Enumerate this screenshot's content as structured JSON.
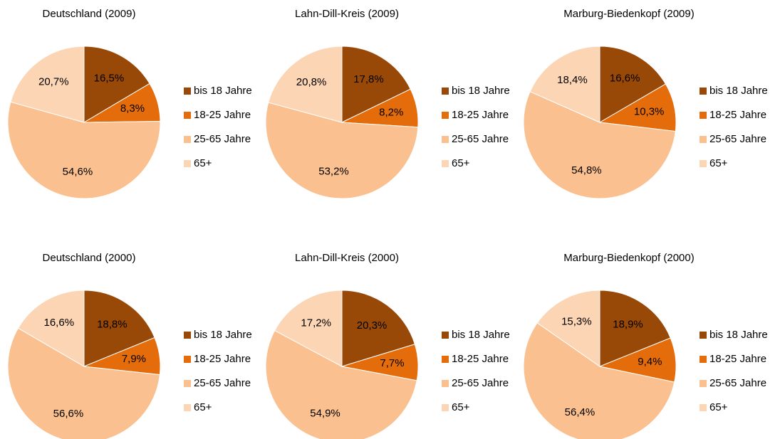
{
  "chart_data": [
    {
      "type": "pie",
      "title": "Deutschland (2009)",
      "categories": [
        "bis 18 Jahre",
        "18-25 Jahre",
        "25-65 Jahre",
        "65+"
      ],
      "values": [
        16.5,
        8.3,
        54.6,
        20.7
      ],
      "value_labels": [
        "16,5%",
        "8,3%",
        "54,6%",
        "20,7%"
      ],
      "colors": [
        "#984807",
        "#e46c0a",
        "#fac08f",
        "#fcd5b5"
      ]
    },
    {
      "type": "pie",
      "title": "Lahn-Dill-Kreis (2009)",
      "categories": [
        "bis 18 Jahre",
        "18-25 Jahre",
        "25-65 Jahre",
        "65+"
      ],
      "values": [
        17.8,
        8.2,
        53.2,
        20.8
      ],
      "value_labels": [
        "17,8%",
        "8,2%",
        "53,2%",
        "20,8%"
      ],
      "colors": [
        "#984807",
        "#e46c0a",
        "#fac08f",
        "#fcd5b5"
      ]
    },
    {
      "type": "pie",
      "title": "Marburg-Biedenkopf  (2009)",
      "categories": [
        "bis 18 Jahre",
        "18-25 Jahre",
        "25-65 Jahre",
        "65+"
      ],
      "values": [
        16.6,
        10.3,
        54.8,
        18.4
      ],
      "value_labels": [
        "16,6%",
        "10,3%",
        "54,8%",
        "18,4%"
      ],
      "colors": [
        "#984807",
        "#e46c0a",
        "#fac08f",
        "#fcd5b5"
      ]
    },
    {
      "type": "pie",
      "title": "Deutschland (2000)",
      "categories": [
        "bis 18 Jahre",
        "18-25 Jahre",
        "25-65 Jahre",
        "65+"
      ],
      "values": [
        18.8,
        7.9,
        56.6,
        16.6
      ],
      "value_labels": [
        "18,8%",
        "7,9%",
        "56,6%",
        "16,6%"
      ],
      "colors": [
        "#984807",
        "#e46c0a",
        "#fac08f",
        "#fcd5b5"
      ]
    },
    {
      "type": "pie",
      "title": "Lahn-Dill-Kreis (2000)",
      "categories": [
        "bis 18 Jahre",
        "18-25 Jahre",
        "25-65 Jahre",
        "65+"
      ],
      "values": [
        20.3,
        7.7,
        54.9,
        17.2
      ],
      "value_labels": [
        "20,3%",
        "7,7%",
        "54,9%",
        "17,2%"
      ],
      "colors": [
        "#984807",
        "#e46c0a",
        "#fac08f",
        "#fcd5b5"
      ]
    },
    {
      "type": "pie",
      "title": "Marburg-Biedenkopf  (2000)",
      "categories": [
        "bis 18 Jahre",
        "18-25 Jahre",
        "25-65 Jahre",
        "65+"
      ],
      "values": [
        18.9,
        9.4,
        56.4,
        15.3
      ],
      "value_labels": [
        "18,9%",
        "9,4%",
        "56,4%",
        "15,3%"
      ],
      "colors": [
        "#984807",
        "#e46c0a",
        "#fac08f",
        "#fcd5b5"
      ]
    }
  ]
}
